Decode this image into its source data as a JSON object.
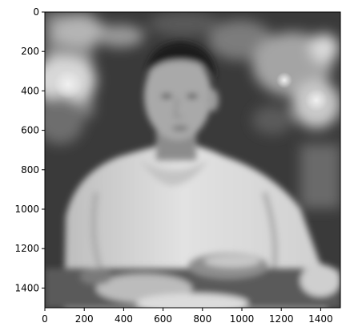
{
  "figure": {
    "image_description": "grayscale blurred photo of a man in a white hooded sweatshirt seated at a table with food",
    "colormap": "gray"
  },
  "axes": {
    "x_ticks": [
      0,
      200,
      400,
      600,
      800,
      1000,
      1200,
      1400
    ],
    "y_ticks": [
      0,
      200,
      400,
      600,
      800,
      1000,
      1200,
      1400
    ],
    "xlim": [
      0,
      1500
    ],
    "ylim": [
      1500,
      0
    ],
    "image_extent": 1500
  }
}
